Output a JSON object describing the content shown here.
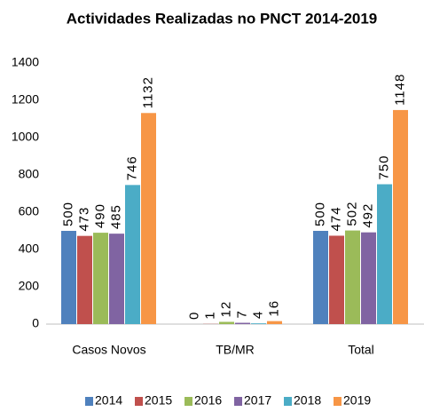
{
  "chart_data": {
    "type": "bar",
    "title": "Actividades Realizadas no PNCT 2014-2019",
    "categories": [
      "Casos Novos",
      "TB/MR",
      "Total"
    ],
    "series": [
      {
        "name": "2014",
        "color": "#4f81bd",
        "values": [
          500,
          0,
          500
        ]
      },
      {
        "name": "2015",
        "color": "#c0504d",
        "values": [
          473,
          1,
          474
        ]
      },
      {
        "name": "2016",
        "color": "#9bbb59",
        "values": [
          490,
          12,
          502
        ]
      },
      {
        "name": "2017",
        "color": "#8064a2",
        "values": [
          485,
          7,
          492
        ]
      },
      {
        "name": "2018",
        "color": "#4bacc6",
        "values": [
          746,
          4,
          750
        ]
      },
      {
        "name": "2019",
        "color": "#f79646",
        "values": [
          1132,
          16,
          1148
        ]
      }
    ],
    "ylim": [
      0,
      1400
    ],
    "yticks": [
      0,
      200,
      400,
      600,
      800,
      1000,
      1200,
      1400
    ],
    "grid": false,
    "legend": "bottom"
  }
}
